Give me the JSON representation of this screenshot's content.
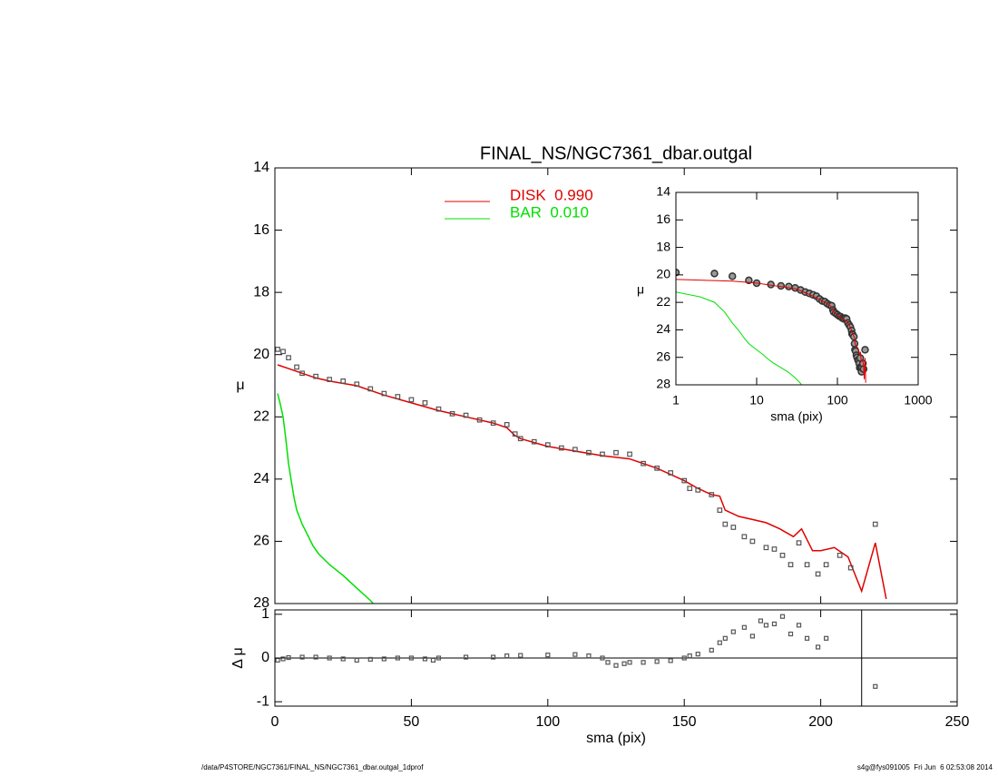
{
  "chart_data": [
    {
      "type": "scatter",
      "title": "FINAL_NS/NGC7361_dbar.outgal",
      "ylabel": "μ",
      "xlim": [
        0,
        250
      ],
      "xticks": [
        0,
        50,
        100,
        150,
        200,
        250
      ],
      "ylim": [
        28,
        14
      ],
      "yticks": [
        14,
        16,
        18,
        20,
        22,
        24,
        26,
        28
      ],
      "points": {
        "color": "#555555",
        "x": [
          1,
          3,
          5,
          8,
          10,
          15,
          20,
          25,
          30,
          35,
          40,
          45,
          50,
          55,
          60,
          65,
          70,
          75,
          80,
          85,
          88,
          90,
          95,
          100,
          105,
          110,
          115,
          120,
          125,
          130,
          135,
          140,
          145,
          150,
          152,
          155,
          160,
          163,
          165,
          168,
          172,
          175,
          180,
          183,
          186,
          189,
          192,
          195,
          199,
          202,
          207,
          211,
          220
        ],
        "values": [
          19.83,
          19.9,
          20.1,
          20.4,
          20.6,
          20.7,
          20.8,
          20.85,
          20.95,
          21.1,
          21.25,
          21.35,
          21.45,
          21.55,
          21.75,
          21.9,
          21.95,
          22.1,
          22.2,
          22.25,
          22.55,
          22.7,
          22.8,
          22.9,
          23.0,
          23.05,
          23.15,
          23.2,
          23.15,
          23.2,
          23.5,
          23.65,
          23.8,
          24.05,
          24.3,
          24.35,
          24.5,
          25.0,
          25.45,
          25.55,
          25.85,
          26.0,
          26.2,
          26.25,
          26.45,
          26.75,
          26.05,
          26.75,
          27.05,
          26.75,
          26.45,
          26.85,
          25.45
        ]
      },
      "series": [
        {
          "name": "DISK  0.990",
          "color": "#e00000",
          "x": [
            1,
            5,
            10,
            15,
            20,
            30,
            40,
            50,
            60,
            70,
            80,
            85,
            88,
            90,
            100,
            110,
            120,
            130,
            140,
            150,
            155,
            160,
            163,
            165,
            170,
            175,
            180,
            185,
            190,
            193,
            197,
            200,
            205,
            210,
            215,
            220,
            224
          ],
          "values": [
            20.33,
            20.45,
            20.6,
            20.75,
            20.85,
            21.0,
            21.3,
            21.55,
            21.8,
            22.0,
            22.2,
            22.35,
            22.6,
            22.7,
            22.95,
            23.1,
            23.25,
            23.35,
            23.65,
            24.05,
            24.3,
            24.5,
            24.55,
            25.0,
            25.2,
            25.3,
            25.4,
            25.6,
            25.85,
            25.6,
            26.3,
            26.3,
            26.2,
            26.5,
            27.6,
            26.05,
            27.85
          ]
        },
        {
          "name": "BAR  0.010",
          "color": "#00e000",
          "x": [
            1,
            2,
            3,
            4,
            5,
            6,
            7,
            8,
            10,
            12,
            14,
            16,
            20,
            25,
            30,
            35,
            36
          ],
          "values": [
            21.25,
            21.6,
            22.0,
            22.7,
            23.5,
            24.05,
            24.6,
            25.0,
            25.45,
            25.8,
            26.15,
            26.4,
            26.75,
            27.1,
            27.5,
            27.9,
            28.0
          ]
        }
      ],
      "inset": {
        "xscale": "log",
        "xlabel": "sma (pix)",
        "ylabel": "μ",
        "xlim": [
          1,
          1000
        ],
        "xticks": [
          1,
          10,
          100,
          1000
        ],
        "ylim": [
          28,
          14
        ],
        "yticks": [
          14,
          16,
          18,
          20,
          22,
          24,
          26,
          28
        ]
      }
    },
    {
      "type": "residual",
      "xlabel": "sma (pix)",
      "ylabel": "Δ μ",
      "xlim": [
        0,
        250
      ],
      "xticks": [
        0,
        50,
        100,
        150,
        200,
        250
      ],
      "ylim": [
        -1.1,
        1.1
      ],
      "yticks": [
        -1,
        0,
        1
      ],
      "vline_x": 215,
      "points": {
        "color": "#555555",
        "x": [
          1,
          3,
          5,
          10,
          15,
          20,
          25,
          30,
          35,
          40,
          45,
          50,
          55,
          58,
          60,
          70,
          80,
          85,
          90,
          100,
          110,
          115,
          120,
          122,
          125,
          128,
          130,
          135,
          140,
          145,
          150,
          152,
          155,
          160,
          163,
          165,
          168,
          172,
          175,
          178,
          180,
          183,
          186,
          189,
          192,
          195,
          199,
          202,
          220
        ],
        "values": [
          -0.05,
          -0.02,
          0.01,
          0.02,
          0.02,
          0,
          -0.02,
          -0.05,
          -0.03,
          -0.02,
          0,
          0,
          -0.02,
          -0.05,
          0,
          0.02,
          0.02,
          0.05,
          0.06,
          0.07,
          0.08,
          0.05,
          0,
          -0.1,
          -0.17,
          -0.13,
          -0.1,
          -0.1,
          -0.08,
          -0.06,
          0,
          0.05,
          0.09,
          0.18,
          0.35,
          0.45,
          0.6,
          0.7,
          0.5,
          0.85,
          0.75,
          0.78,
          0.95,
          0.55,
          0.75,
          0.45,
          0.25,
          0.45,
          -0.65
        ]
      }
    }
  ],
  "footer": {
    "left": "/data/P4STORE/NGC7361/FINAL_NS/NGC7361_dbar.outgal_1dprof",
    "right": "s4g@fys091005  Fri Jun  6 02:53:08 2014"
  }
}
